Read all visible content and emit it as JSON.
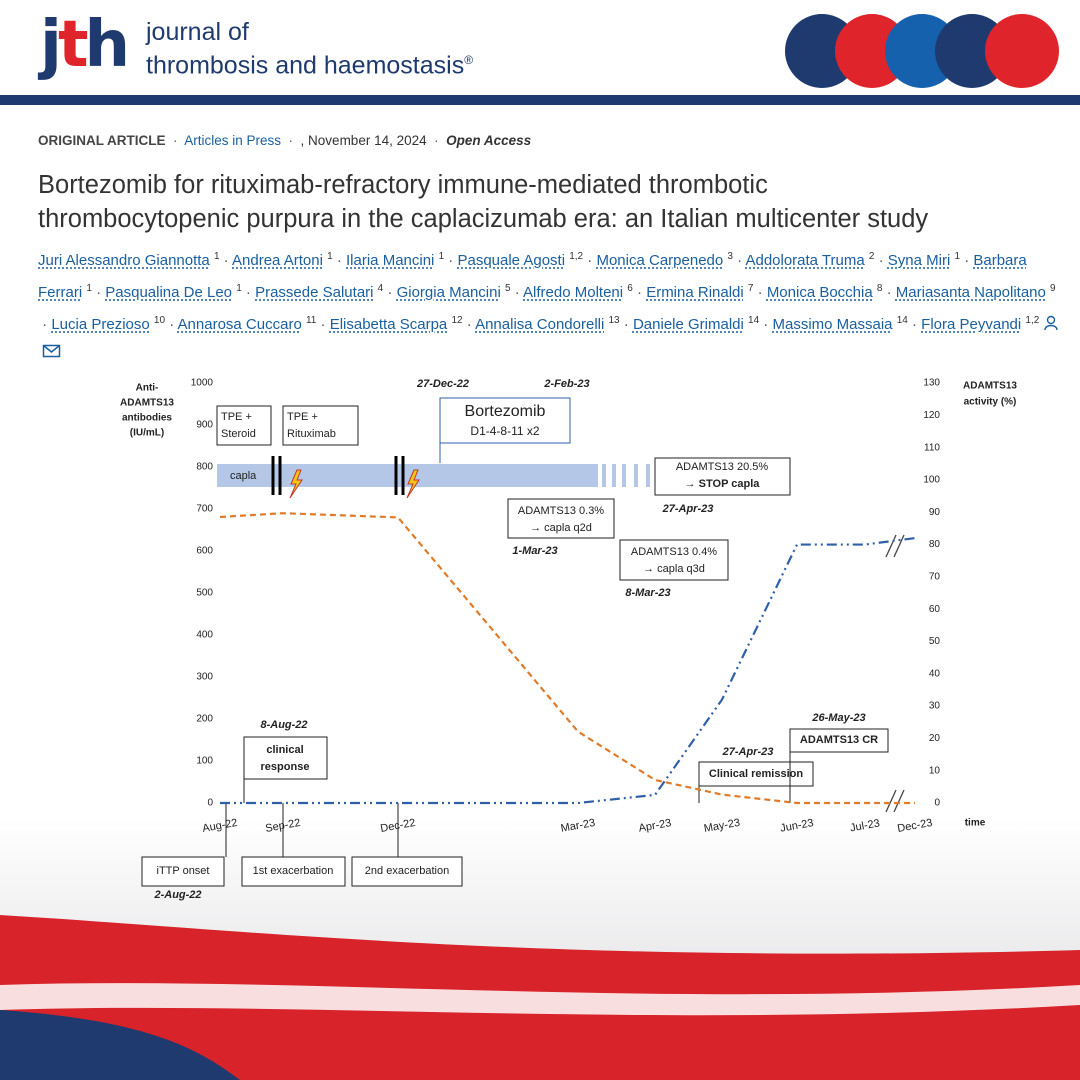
{
  "header": {
    "logo": "jth",
    "journal_line1": "journal of",
    "journal_line2": "thrombosis and haemostasis",
    "mark": "®"
  },
  "article": {
    "type": "ORIGINAL ARTICLE",
    "section": "Articles in Press",
    "date": ", November 14, 2024",
    "access": "Open Access",
    "title_lines": [
      "Bortezomib for rituximab-refractory immune-mediated thrombotic",
      "thrombocytopenic purpura in the caplacizumab era: an Italian multicenter study"
    ],
    "authors": [
      {
        "name": "Juri Alessandro Giannotta",
        "aff": "1"
      },
      {
        "name": "Andrea Artoni",
        "aff": "1"
      },
      {
        "name": "Ilaria Mancini",
        "aff": "1"
      },
      {
        "name": "Pasquale Agosti",
        "aff": "1,2"
      },
      {
        "name": "Monica Carpenedo",
        "aff": "3"
      },
      {
        "name": "Addolorata Truma",
        "aff": "2"
      },
      {
        "name": "Syna Miri",
        "aff": "1"
      },
      {
        "name": "Barbara Ferrari",
        "aff": "1"
      },
      {
        "name": "Pasqualina De Leo",
        "aff": "1"
      },
      {
        "name": "Prassede Salutari",
        "aff": "4"
      },
      {
        "name": "Giorgia Mancini",
        "aff": "5"
      },
      {
        "name": "Alfredo Molteni",
        "aff": "6"
      },
      {
        "name": "Ermina Rinaldi",
        "aff": "7"
      },
      {
        "name": "Monica Bocchia",
        "aff": "8"
      },
      {
        "name": "Mariasanta Napolitano",
        "aff": "9"
      },
      {
        "name": "Lucia Prezioso",
        "aff": "10"
      },
      {
        "name": "Annarosa Cuccaro",
        "aff": "11"
      },
      {
        "name": "Elisabetta Scarpa",
        "aff": "12"
      },
      {
        "name": "Annalisa Condorelli",
        "aff": "13"
      },
      {
        "name": "Daniele Grimaldi",
        "aff": "14"
      },
      {
        "name": "Massimo Massaia",
        "aff": "14"
      },
      {
        "name": "Flora Peyvandi",
        "aff": "1,2"
      }
    ]
  },
  "chart_data": {
    "type": "line",
    "x_label": "time",
    "y_label": [
      "Anti-",
      "ADAMTS13",
      "antibodies",
      "(IU/mL)"
    ],
    "y2_label": [
      "ADAMTS13",
      "activity (%)"
    ],
    "categories": [
      "Aug-22",
      "Sep-22",
      "Dec-22",
      "Mar-23",
      "Apr-23",
      "May-23",
      "Jun-23",
      "Jul-23",
      "Dec-23"
    ],
    "series": [
      {
        "name": "Anti-ADAMTS13 antibodies",
        "color": "#e07b2a",
        "values": [
          681,
          690,
          680,
          170,
          55,
          20,
          0,
          0,
          0
        ]
      },
      {
        "name": "ADAMTS13 activity",
        "color": "#2f5fa8",
        "axis": "y2",
        "values": [
          0,
          0,
          0,
          0,
          2.5,
          32,
          80,
          80,
          82
        ]
      }
    ],
    "ylim": [
      0,
      1000
    ],
    "yticks": [
      0,
      100,
      200,
      300,
      400,
      500,
      600,
      700,
      800,
      900,
      1000
    ],
    "y2lim": [
      0,
      130
    ],
    "y2ticks": [
      0,
      10,
      20,
      30,
      40,
      50,
      60,
      70,
      80,
      90,
      100,
      110,
      120,
      130
    ],
    "annotations": [
      "27-Dec-22",
      "2-Feb-23",
      "TPE +",
      "Steroid",
      "TPE +",
      "Rituximab",
      "Bortezomib",
      "D1-4-8-11 x2",
      "capla",
      "ADAMTS13 20.5%",
      "→ STOP capla",
      "27-Apr-23",
      "ADAMTS13 0.3%",
      "→ capla q2d",
      "1-Mar-23",
      "ADAMTS13 0.4%",
      "→ capla q3d",
      "8-Mar-23",
      "8-Aug-22",
      "clinical",
      "response",
      "27-Apr-23",
      "Clinical remission",
      "26-May-23",
      "ADAMTS13 CR",
      "iTTP onset",
      "2-Aug-22",
      "1st exacerbation",
      "2nd exacerbation"
    ]
  }
}
